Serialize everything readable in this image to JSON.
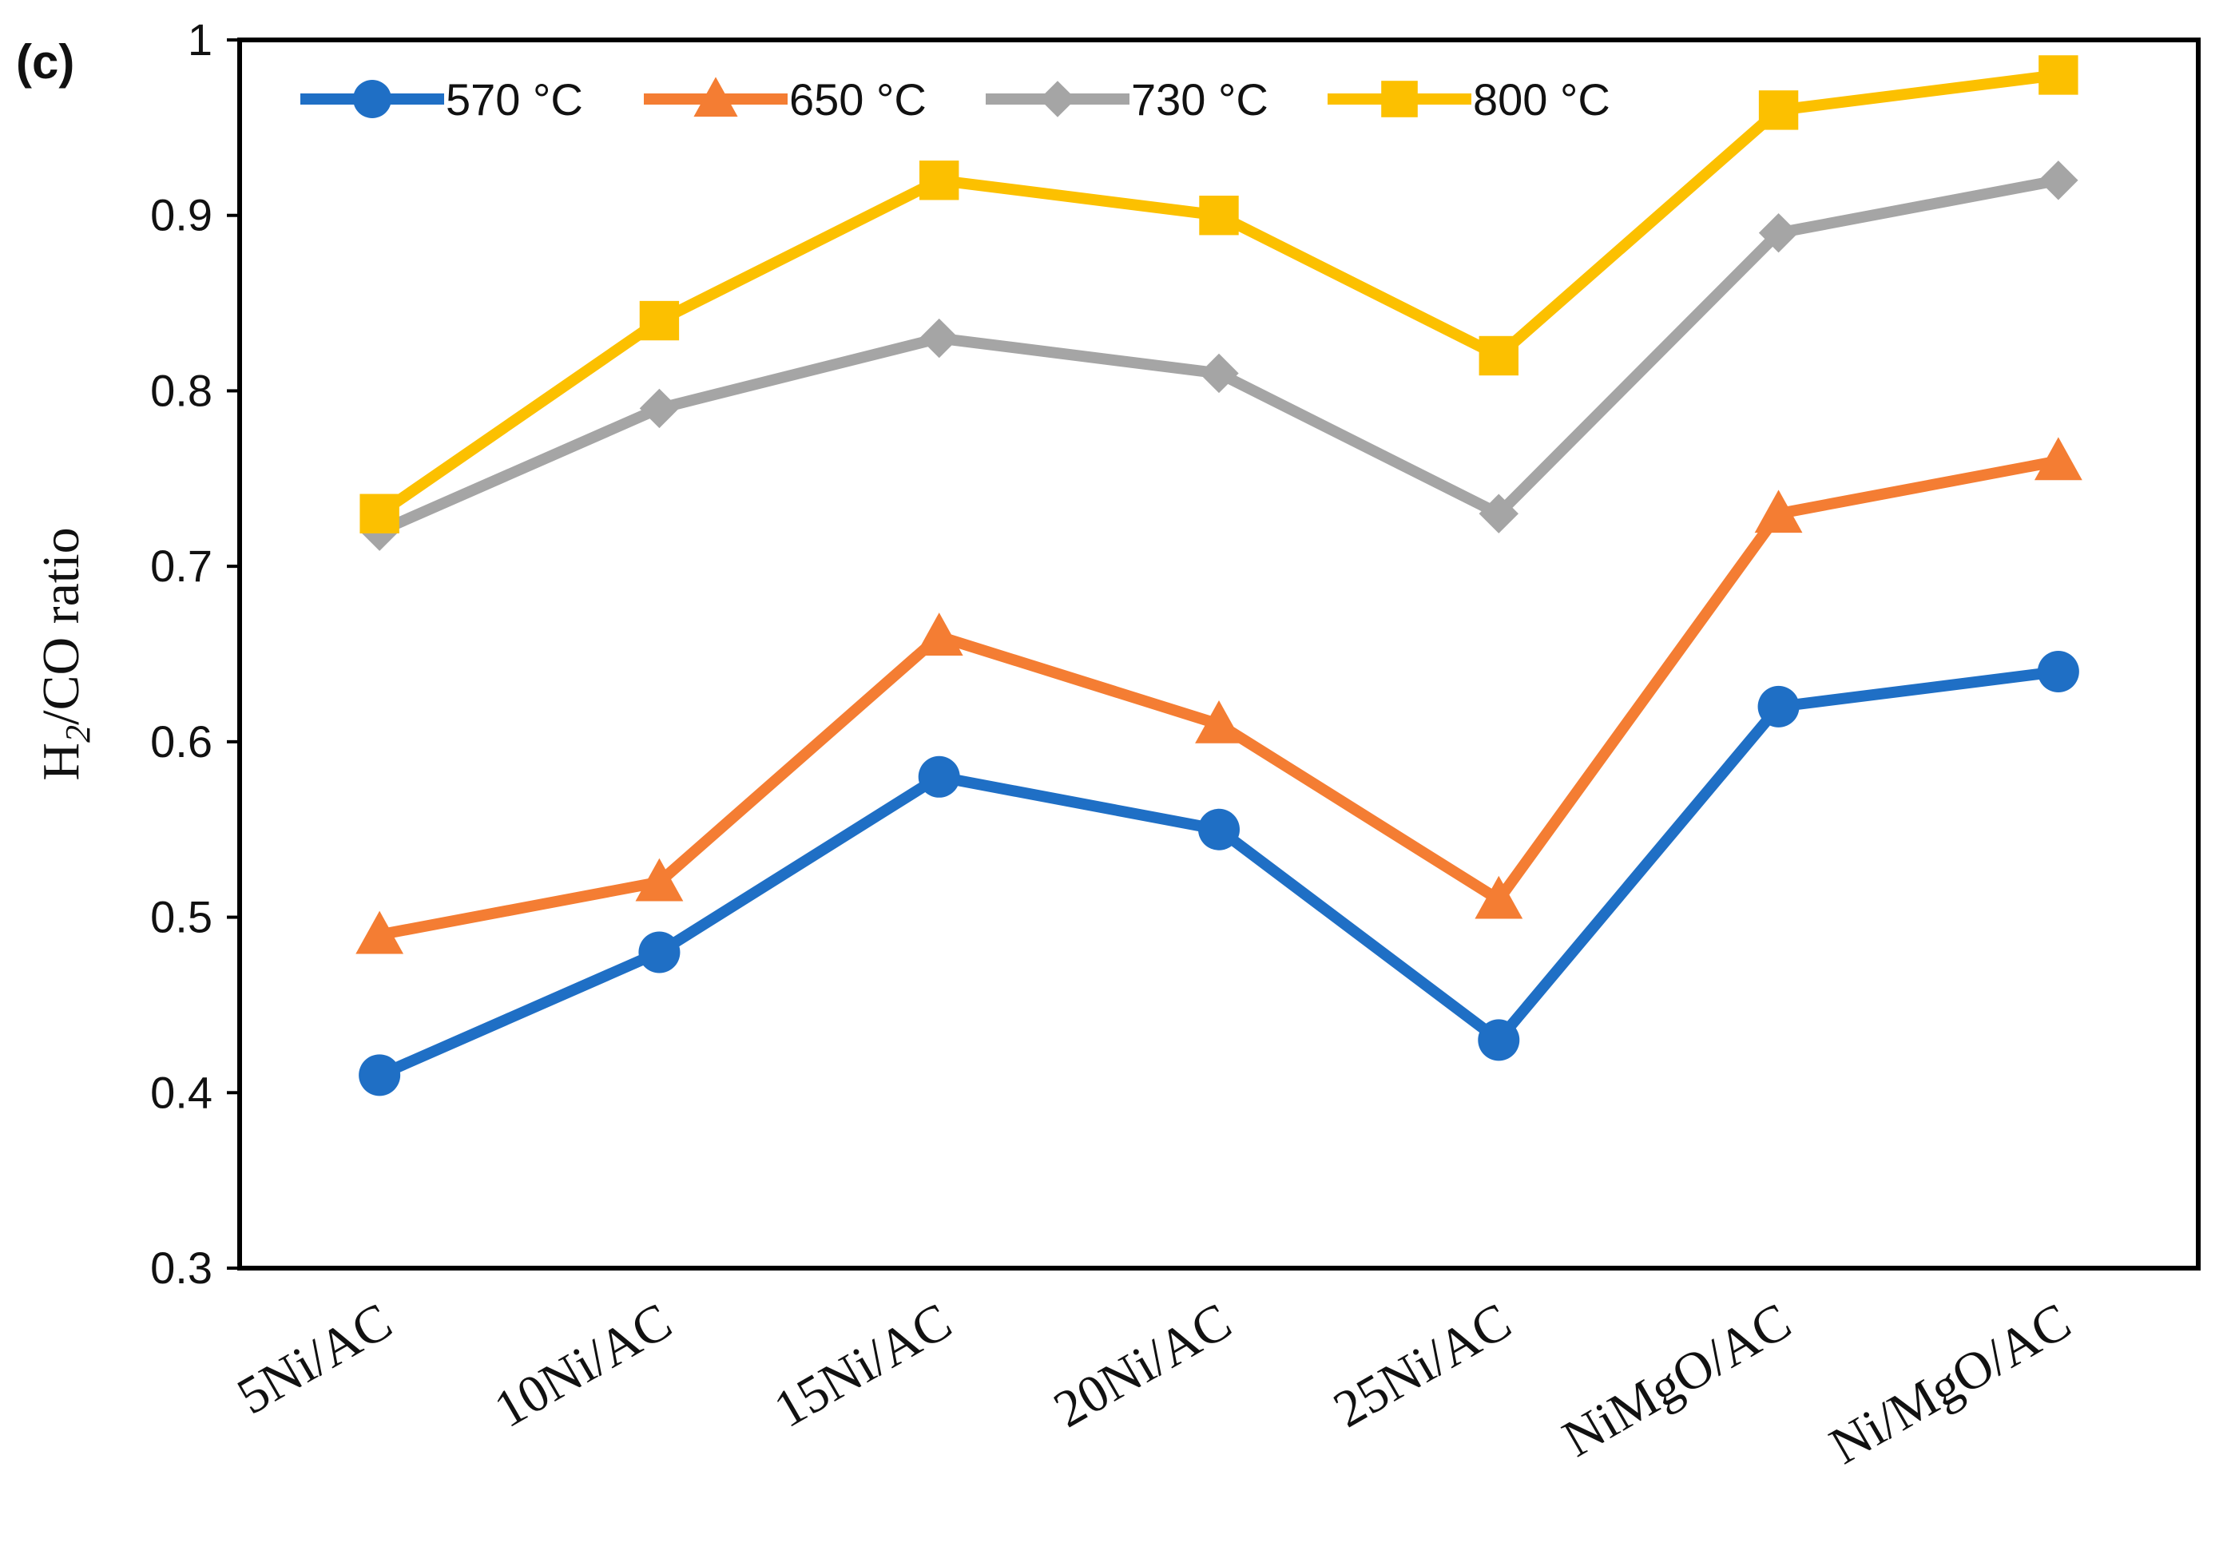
{
  "panel_label": "(c)",
  "chart_data": {
    "type": "line",
    "title": "",
    "xlabel": "",
    "ylabel": "H2/CO ratio",
    "ylabel_parts": {
      "main": "H",
      "sub": "2",
      "rest": "/CO ratio"
    },
    "ylim": [
      0.3,
      1.0
    ],
    "yticks": [
      0.3,
      0.4,
      0.5,
      0.6,
      0.7,
      0.8,
      0.9,
      1.0
    ],
    "ytick_labels": [
      "0.3",
      "0.4",
      "0.5",
      "0.6",
      "0.7",
      "0.8",
      "0.9",
      "1"
    ],
    "categories": [
      "5Ni/AC",
      "10Ni/AC",
      "15Ni/AC",
      "20Ni/AC",
      "25Ni/AC",
      "NiMgO/AC",
      "Ni/MgO/AC"
    ],
    "legend_position": "top-left",
    "grid": false,
    "series": [
      {
        "name": "570 °C",
        "color": "#1f6fc5",
        "marker": "circle",
        "values": [
          0.41,
          0.48,
          0.58,
          0.55,
          0.43,
          0.62,
          0.64
        ]
      },
      {
        "name": "650 °C",
        "color": "#f47d33",
        "marker": "triangle",
        "values": [
          0.49,
          0.52,
          0.66,
          0.61,
          0.51,
          0.73,
          0.76
        ]
      },
      {
        "name": "730 °C",
        "color": "#a5a5a5",
        "marker": "diamond",
        "values": [
          0.72,
          0.79,
          0.83,
          0.81,
          0.73,
          0.89,
          0.92
        ]
      },
      {
        "name": "800 °C",
        "color": "#fcc000",
        "marker": "square",
        "values": [
          0.73,
          0.84,
          0.92,
          0.9,
          0.82,
          0.96,
          0.98
        ]
      }
    ]
  }
}
